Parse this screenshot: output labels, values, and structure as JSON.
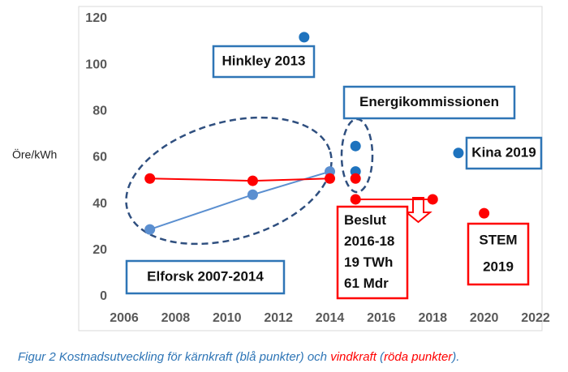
{
  "chart_data": {
    "type": "scatter",
    "y_label": "Öre/kWh",
    "xlim": [
      2006,
      2022
    ],
    "xticks": [
      2006,
      2008,
      2010,
      2012,
      2014,
      2016,
      2018,
      2020,
      2022
    ],
    "ylim": [
      0,
      120
    ],
    "yticks": [
      0,
      20,
      40,
      60,
      80,
      100,
      120
    ],
    "grid": false,
    "series": [
      {
        "color": "#5b8fd0",
        "line": true,
        "markers": true,
        "x": [
          2007,
          2011,
          2014
        ],
        "values": [
          29,
          44,
          54
        ]
      },
      {
        "color": "#ff0000",
        "line": true,
        "markers": true,
        "x": [
          2007,
          2011,
          2014
        ],
        "values": [
          51,
          50,
          51
        ]
      },
      {
        "color": "#1e73be",
        "line": false,
        "markers": true,
        "x": [
          2013,
          2015,
          2015,
          2019
        ],
        "values": [
          112,
          65,
          54,
          62
        ]
      },
      {
        "color": "#ff0000",
        "line": false,
        "markers": true,
        "x": [
          2015,
          2015,
          2018,
          2020
        ],
        "values": [
          51,
          42,
          42,
          36
        ]
      },
      {
        "color": "#ff0000",
        "line": true,
        "markers": false,
        "x": [
          2015,
          2018
        ],
        "values": [
          42,
          42
        ]
      }
    ],
    "annotations": [
      {
        "lines": [
          "Hinkley 2013"
        ],
        "color": "#2e75b6"
      },
      {
        "lines": [
          "Energikommissionen"
        ],
        "color": "#2e75b6"
      },
      {
        "lines": [
          "Kina 2019"
        ],
        "color": "#2e75b6"
      },
      {
        "lines": [
          "Elforsk 2007-2014"
        ],
        "color": "#2e75b6"
      },
      {
        "lines": [
          "Beslut",
          "2016-18",
          "19 TWh",
          "61 Mdr"
        ],
        "color": "#ff0000"
      },
      {
        "lines": [
          "STEM",
          "2019"
        ],
        "color": "#ff0000"
      }
    ],
    "caption": [
      {
        "text": "Figur 2 Kostnadsutveckling för kärnkraft (blå punkter) och ",
        "color": "#2e75b6"
      },
      {
        "text": "vindkraft",
        "color": "#ff0000"
      },
      {
        "text": " (",
        "color": "#2e75b6"
      },
      {
        "text": "röda punkter",
        "color": "#ff0000"
      },
      {
        "text": ").",
        "color": "#2e75b6"
      }
    ]
  }
}
